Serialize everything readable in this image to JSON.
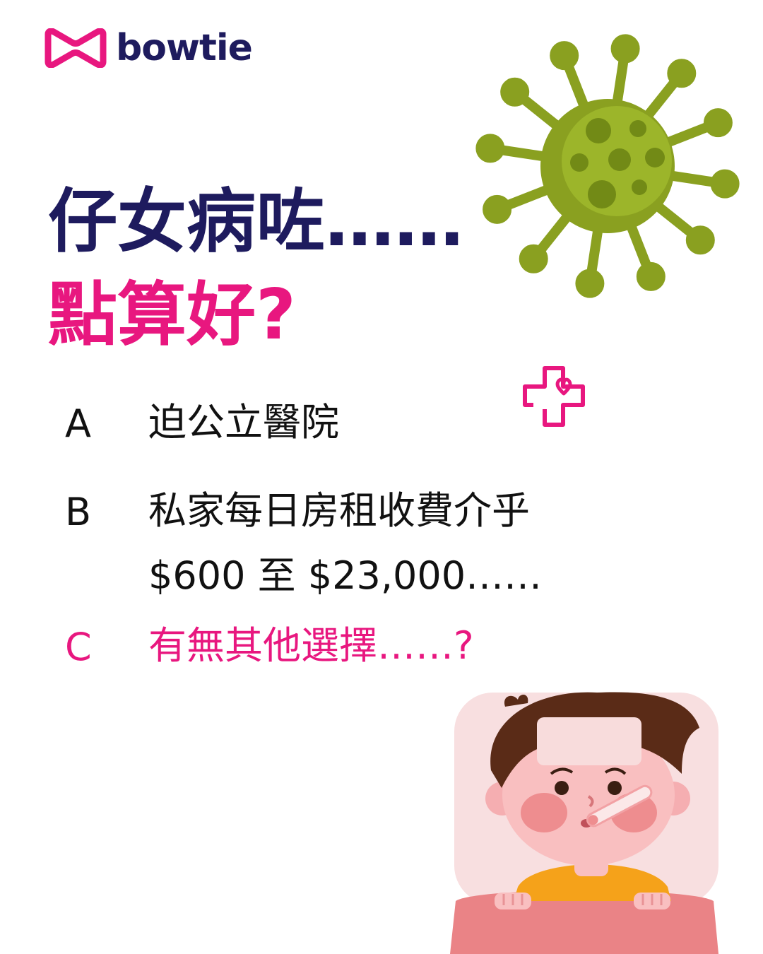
{
  "brand": {
    "name": "bowtie",
    "colors": {
      "navy": "#1e1b5e",
      "pink": "#e8177f",
      "virus": "#8aa020"
    }
  },
  "headline": {
    "line1": "仔女病咗……",
    "line2": "點算好?"
  },
  "options": [
    {
      "letter": "A",
      "text": [
        "迫公立醫院"
      ]
    },
    {
      "letter": "B",
      "text": [
        "私家每日房租收費介乎",
        "$600 至 $23,000……"
      ]
    },
    {
      "letter": "C",
      "text": [
        "有無其他選擇……?"
      ]
    }
  ],
  "icons": [
    "bowtie-logo-icon",
    "virus-icon",
    "medical-cross-heart-icon",
    "sick-child-illustration"
  ]
}
